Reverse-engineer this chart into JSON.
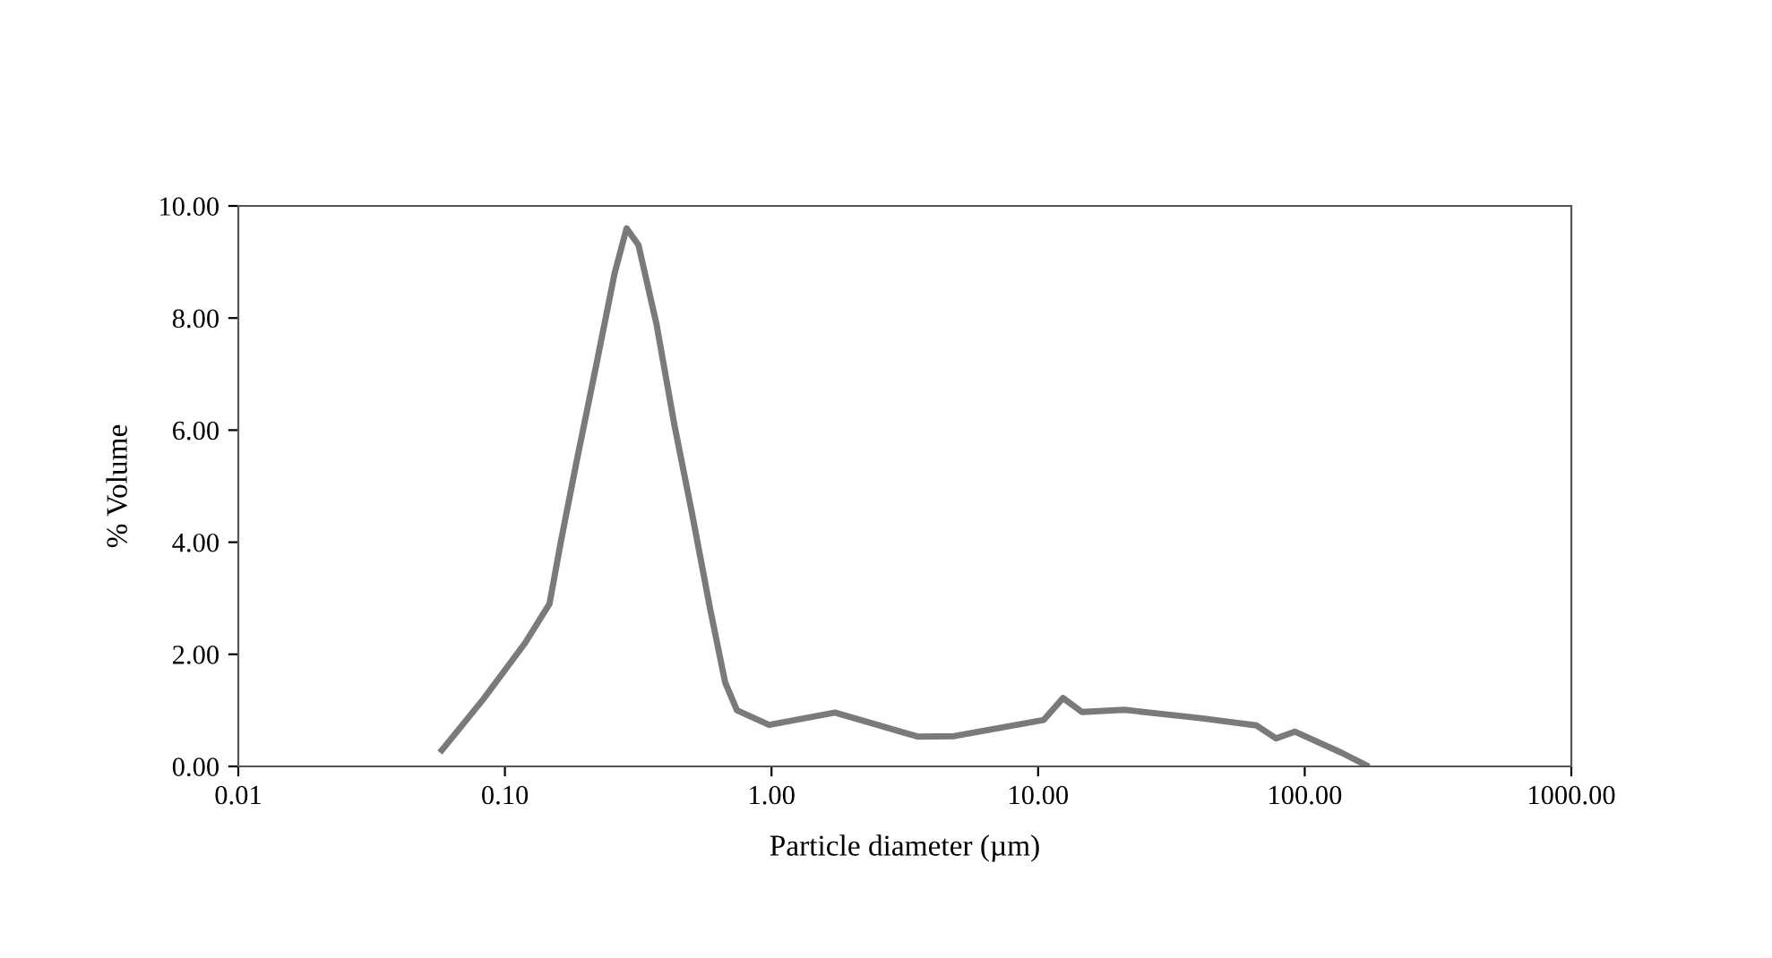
{
  "chart_data": {
    "type": "line",
    "xlabel": "Particle diameter (µm)",
    "ylabel": "% Volume",
    "log": "x",
    "grid": false,
    "marker": "none",
    "line_style": "solid",
    "xlim": [
      0.01,
      1000
    ],
    "xticks": [
      {
        "value": 0.01,
        "label": "0.01"
      },
      {
        "value": 0.1,
        "label": "0.10"
      },
      {
        "value": 1,
        "label": "1.00"
      },
      {
        "value": 10,
        "label": "10.00"
      },
      {
        "value": 100,
        "label": "100.00"
      },
      {
        "value": 1000,
        "label": "1000.00"
      }
    ],
    "ylim": [
      0,
      10
    ],
    "yticks": [
      {
        "value": 0,
        "label": "0.00"
      },
      {
        "value": 2,
        "label": "2.00"
      },
      {
        "value": 4,
        "label": "4.00"
      },
      {
        "value": 6,
        "label": "6.00"
      },
      {
        "value": 8,
        "label": "8.00"
      },
      {
        "value": 10,
        "label": "10.00"
      }
    ],
    "series": [
      {
        "color": "#7a7a7a",
        "x": [
          0.058,
          0.083,
          0.119,
          0.147,
          0.162,
          0.185,
          0.221,
          0.258,
          0.286,
          0.317,
          0.37,
          0.432,
          0.504,
          0.589,
          0.67,
          0.742,
          0.98,
          1.73,
          3.55,
          4.85,
          10.5,
          12.4,
          14.6,
          21.1,
          40.7,
          66,
          78,
          91.8,
          138,
          170
        ],
        "values": [
          0.29,
          1.2,
          2.2,
          2.9,
          4.0,
          5.4,
          7.2,
          8.8,
          9.6,
          9.3,
          7.9,
          6.1,
          4.5,
          2.8,
          1.5,
          1.0,
          0.74,
          0.96,
          0.53,
          0.54,
          0.83,
          1.22,
          0.97,
          1.01,
          0.86,
          0.73,
          0.5,
          0.62,
          0.24,
          0.02
        ]
      }
    ]
  }
}
